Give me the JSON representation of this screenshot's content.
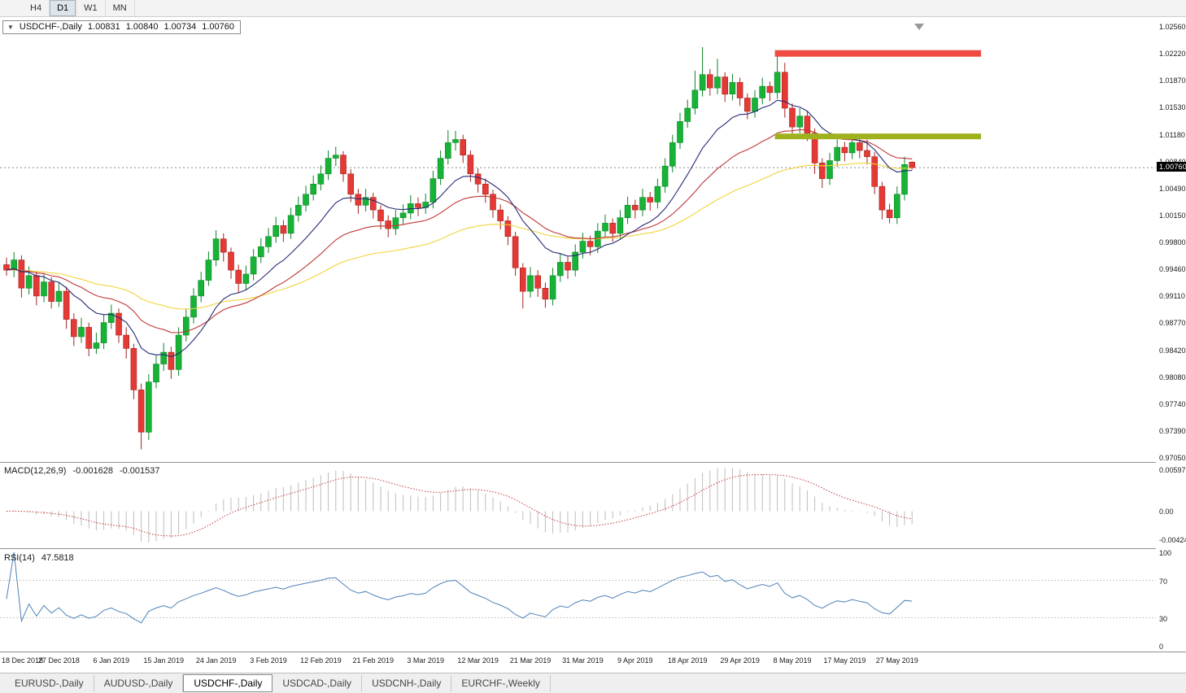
{
  "toolbar": {
    "timeframes": [
      {
        "label": "H4",
        "active": false
      },
      {
        "label": "D1",
        "active": true
      },
      {
        "label": "W1",
        "active": false
      },
      {
        "label": "MN",
        "active": false
      }
    ]
  },
  "header": {
    "symbol": "USDCHF-,Daily",
    "open": "1.00831",
    "high": "1.00840",
    "low": "1.00734",
    "close": "1.00760"
  },
  "price_axis": {
    "labels": [
      "1.02560",
      "1.02220",
      "1.01870",
      "1.01530",
      "1.01180",
      "1.00840",
      "1.00490",
      "1.00150",
      "0.99800",
      "0.99460",
      "0.99110",
      "0.98770",
      "0.98420",
      "0.98080",
      "0.97740",
      "0.97390",
      "0.97050"
    ],
    "current": "1.00760"
  },
  "macd_panel": {
    "title": "MACD(12,26,9)",
    "main_value": "-0.001628",
    "signal_value": "-0.001537",
    "axis": [
      "0.00597",
      "0.00",
      "-0.00424"
    ]
  },
  "rsi_panel": {
    "title": "RSI(14)",
    "value": "47.5818",
    "axis": [
      "100",
      "70",
      "30",
      "0"
    ]
  },
  "tabs": [
    {
      "label": "EURUSD-,Daily",
      "active": false
    },
    {
      "label": "AUDUSD-,Daily",
      "active": false
    },
    {
      "label": "USDCHF-,Daily",
      "active": true
    },
    {
      "label": "USDCAD-,Daily",
      "active": false
    },
    {
      "label": "USDCNH-,Daily",
      "active": false
    },
    {
      "label": "EURCHF-,Weekly",
      "active": false
    }
  ],
  "colors": {
    "up": "#17b337",
    "up_dark": "#0c8526",
    "down": "#e53935",
    "down_dark": "#a32420",
    "ma_fast": "#242a75",
    "ma_mid": "#bf3636",
    "ma_slow": "#f0d43c",
    "resistance": "#ef4b42",
    "support": "#a0b11e",
    "macd_hist": "#bdbdbd",
    "macd_signal": "#c23a3a",
    "rsi": "#4d82b8",
    "price_line": "#8a8a8a"
  },
  "chart_data": {
    "type": "candlestick",
    "symbol": "USDCHF",
    "timeframe": "Daily",
    "y_range": [
      0.9705,
      1.0256
    ],
    "current_price": 1.0076,
    "label_step": 7,
    "x_axis_labels": [
      "18 Dec 2018",
      "27 Dec 2018",
      "6 Jan 2019",
      "15 Jan 2019",
      "24 Jan 2019",
      "3 Feb 2019",
      "12 Feb 2019",
      "21 Feb 2019",
      "3 Mar 2019",
      "12 Mar 2019",
      "21 Mar 2019",
      "31 Mar 2019",
      "9 Apr 2019",
      "18 Apr 2019",
      "29 Apr 2019",
      "8 May 2019",
      "17 May 2019",
      "27 May 2019"
    ],
    "ohlc": [
      [
        0.9952,
        0.9961,
        0.9938,
        0.9945
      ],
      [
        0.9945,
        0.9968,
        0.9936,
        0.9958
      ],
      [
        0.9958,
        0.9964,
        0.991,
        0.9922
      ],
      [
        0.9922,
        0.995,
        0.9914,
        0.9938
      ],
      [
        0.9938,
        0.9944,
        0.99,
        0.9912
      ],
      [
        0.9912,
        0.9941,
        0.9904,
        0.993
      ],
      [
        0.993,
        0.9936,
        0.9896,
        0.9905
      ],
      [
        0.9905,
        0.993,
        0.9898,
        0.9918
      ],
      [
        0.9918,
        0.9924,
        0.987,
        0.9882
      ],
      [
        0.9882,
        0.989,
        0.9848,
        0.986
      ],
      [
        0.986,
        0.9884,
        0.9852,
        0.9872
      ],
      [
        0.9872,
        0.9878,
        0.9835,
        0.9845
      ],
      [
        0.9845,
        0.9865,
        0.9838,
        0.9852
      ],
      [
        0.9852,
        0.9888,
        0.9844,
        0.9878
      ],
      [
        0.9878,
        0.9901,
        0.987,
        0.989
      ],
      [
        0.989,
        0.9896,
        0.9852,
        0.9862
      ],
      [
        0.9862,
        0.9872,
        0.9832,
        0.9845
      ],
      [
        0.9845,
        0.9851,
        0.978,
        0.9792
      ],
      [
        0.9792,
        0.98,
        0.9716,
        0.9738
      ],
      [
        0.9738,
        0.9812,
        0.9728,
        0.9802
      ],
      [
        0.9802,
        0.9836,
        0.9794,
        0.9825
      ],
      [
        0.9825,
        0.9852,
        0.9816,
        0.984
      ],
      [
        0.984,
        0.9847,
        0.9806,
        0.9818
      ],
      [
        0.9818,
        0.9872,
        0.981,
        0.9862
      ],
      [
        0.9862,
        0.9896,
        0.9854,
        0.9885
      ],
      [
        0.9885,
        0.9922,
        0.9877,
        0.9912
      ],
      [
        0.9912,
        0.9943,
        0.9904,
        0.9932
      ],
      [
        0.9932,
        0.9969,
        0.9925,
        0.9958
      ],
      [
        0.9958,
        0.9996,
        0.995,
        0.9985
      ],
      [
        0.9985,
        0.9992,
        0.9956,
        0.9968
      ],
      [
        0.9968,
        0.9974,
        0.9934,
        0.9945
      ],
      [
        0.9945,
        0.9952,
        0.9916,
        0.9928
      ],
      [
        0.9928,
        0.9951,
        0.992,
        0.994
      ],
      [
        0.994,
        0.9972,
        0.9932,
        0.9962
      ],
      [
        0.9962,
        0.9986,
        0.9954,
        0.9975
      ],
      [
        0.9975,
        0.9999,
        0.9967,
        0.9988
      ],
      [
        0.9988,
        1.0013,
        0.998,
        1.0002
      ],
      [
        1.0002,
        1.0009,
        0.9981,
        0.9992
      ],
      [
        0.9992,
        1.0025,
        0.9985,
        1.0015
      ],
      [
        1.0015,
        1.0039,
        1.0007,
        1.0028
      ],
      [
        1.0028,
        1.0053,
        1.002,
        1.0042
      ],
      [
        1.0042,
        1.0066,
        1.0034,
        1.0055
      ],
      [
        1.0055,
        1.0079,
        1.0047,
        1.0068
      ],
      [
        1.0068,
        1.0098,
        1.006,
        1.0088
      ],
      [
        1.0088,
        1.0103,
        1.0078,
        1.0092
      ],
      [
        1.0092,
        1.0097,
        1.0058,
        1.0068
      ],
      [
        1.0068,
        1.0074,
        1.0032,
        1.0042
      ],
      [
        1.0042,
        1.0049,
        1.0017,
        1.0028
      ],
      [
        1.0028,
        1.0049,
        1.002,
        1.0038
      ],
      [
        1.0038,
        1.0044,
        1.0011,
        1.0022
      ],
      [
        1.0022,
        1.0028,
        0.9997,
        1.0008
      ],
      [
        1.0008,
        1.0015,
        0.9987,
        0.9998
      ],
      [
        0.9998,
        1.0022,
        0.999,
        1.0012
      ],
      [
        1.0012,
        1.0029,
        1.0004,
        1.0018
      ],
      [
        1.0018,
        1.0041,
        1.001,
        1.003
      ],
      [
        1.003,
        1.0038,
        1.0014,
        1.0025
      ],
      [
        1.0025,
        1.0043,
        1.0017,
        1.0032
      ],
      [
        1.0032,
        1.0072,
        1.0024,
        1.0062
      ],
      [
        1.0062,
        1.0098,
        1.0054,
        1.0088
      ],
      [
        1.0088,
        1.0124,
        1.008,
        1.0108
      ],
      [
        1.0108,
        1.0123,
        1.0098,
        1.0112
      ],
      [
        1.0112,
        1.0118,
        1.0082,
        1.0092
      ],
      [
        1.0092,
        1.0098,
        1.0058,
        1.0068
      ],
      [
        1.0068,
        1.0075,
        1.0044,
        1.0055
      ],
      [
        1.0055,
        1.0062,
        1.0031,
        1.0042
      ],
      [
        1.0042,
        1.0048,
        1.0012,
        1.0022
      ],
      [
        1.0022,
        1.0029,
        0.9997,
        1.0008
      ],
      [
        1.0008,
        1.0014,
        0.9977,
        0.9988
      ],
      [
        0.9988,
        0.9994,
        0.9938,
        0.9948
      ],
      [
        0.9948,
        0.9954,
        0.9896,
        0.9918
      ],
      [
        0.9918,
        0.9949,
        0.991,
        0.9938
      ],
      [
        0.9938,
        0.9945,
        0.9911,
        0.9922
      ],
      [
        0.9922,
        0.9929,
        0.9897,
        0.9908
      ],
      [
        0.9908,
        0.9948,
        0.99,
        0.9938
      ],
      [
        0.9938,
        0.9966,
        0.993,
        0.9955
      ],
      [
        0.9955,
        0.9962,
        0.9934,
        0.9945
      ],
      [
        0.9945,
        0.9978,
        0.9937,
        0.9968
      ],
      [
        0.9968,
        0.9993,
        0.996,
        0.9982
      ],
      [
        0.9982,
        0.9989,
        0.9964,
        0.9975
      ],
      [
        0.9975,
        1.0005,
        0.9967,
        0.9995
      ],
      [
        0.9995,
        1.0016,
        0.9987,
        1.0005
      ],
      [
        1.0005,
        1.0011,
        0.9981,
        0.9992
      ],
      [
        0.9992,
        1.0022,
        0.9984,
        1.0012
      ],
      [
        1.0012,
        1.0039,
        1.0004,
        1.0028
      ],
      [
        1.0028,
        1.0035,
        1.0011,
        1.0022
      ],
      [
        1.0022,
        1.0049,
        1.0014,
        1.0038
      ],
      [
        1.0038,
        1.0045,
        1.0021,
        1.0032
      ],
      [
        1.0032,
        1.0062,
        1.0024,
        1.0052
      ],
      [
        1.0052,
        1.0088,
        1.0044,
        1.0078
      ],
      [
        1.0078,
        1.0118,
        1.007,
        1.0108
      ],
      [
        1.0108,
        1.0146,
        1.01,
        1.0135
      ],
      [
        1.0135,
        1.0163,
        1.0127,
        1.0152
      ],
      [
        1.0152,
        1.02,
        1.0144,
        1.0175
      ],
      [
        1.0175,
        1.023,
        1.0167,
        1.0195
      ],
      [
        1.0195,
        1.0202,
        1.0168,
        1.0178
      ],
      [
        1.0178,
        1.0215,
        1.017,
        1.0192
      ],
      [
        1.0192,
        1.0198,
        1.016,
        1.017
      ],
      [
        1.017,
        1.0196,
        1.0162,
        1.0185
      ],
      [
        1.0185,
        1.0191,
        1.0155,
        1.0165
      ],
      [
        1.0165,
        1.0171,
        1.0138,
        1.0148
      ],
      [
        1.0148,
        1.0175,
        1.014,
        1.0165
      ],
      [
        1.0165,
        1.0191,
        1.0157,
        1.018
      ],
      [
        1.018,
        1.0186,
        1.0161,
        1.0172
      ],
      [
        1.0172,
        1.0222,
        1.0164,
        1.0198
      ],
      [
        1.0198,
        1.021,
        1.014,
        1.0152
      ],
      [
        1.0152,
        1.0158,
        1.0118,
        1.0128
      ],
      [
        1.0128,
        1.0152,
        1.012,
        1.0142
      ],
      [
        1.0142,
        1.0148,
        1.011,
        1.012
      ],
      [
        1.012,
        1.0126,
        1.0068,
        1.0082
      ],
      [
        1.0082,
        1.0088,
        1.005,
        1.0062
      ],
      [
        1.0062,
        1.0095,
        1.0054,
        1.0085
      ],
      [
        1.0085,
        1.0112,
        1.0077,
        1.0102
      ],
      [
        1.0102,
        1.0109,
        1.0084,
        1.0095
      ],
      [
        1.0095,
        1.012,
        1.0087,
        1.0108
      ],
      [
        1.0108,
        1.0114,
        1.0088,
        1.0098
      ],
      [
        1.0098,
        1.0112,
        1.008,
        1.009
      ],
      [
        1.009,
        1.0096,
        1.0042,
        1.0052
      ],
      [
        1.0052,
        1.0058,
        1.001,
        1.0022
      ],
      [
        1.0022,
        1.003,
        1.0005,
        1.0012
      ],
      [
        1.0012,
        1.0052,
        1.0004,
        1.0042
      ],
      [
        1.0042,
        1.009,
        1.0034,
        1.008
      ],
      [
        1.00831,
        1.0084,
        1.00734,
        1.0076
      ]
    ],
    "moving_averages": [
      {
        "period": 12,
        "type": "ema",
        "color_key": "ma_fast"
      },
      {
        "period": 26,
        "type": "ema",
        "color_key": "ma_mid"
      },
      {
        "period": 55,
        "type": "ema",
        "color_key": "ma_slow"
      }
    ],
    "levels": [
      {
        "name": "resistance",
        "value": 1.0222,
        "thickness": 8,
        "from_candle": 103,
        "color_key": "resistance"
      },
      {
        "name": "support",
        "value": 1.0116,
        "thickness": 7,
        "from_candle": 103,
        "color_key": "support"
      }
    ],
    "indicators": [
      {
        "name": "MACD",
        "params": [
          12,
          26,
          9
        ],
        "current_main": -0.001628,
        "current_signal": -0.001537
      },
      {
        "name": "RSI",
        "params": [
          14
        ],
        "current": 47.5818,
        "levels": [
          70,
          30
        ]
      }
    ]
  }
}
